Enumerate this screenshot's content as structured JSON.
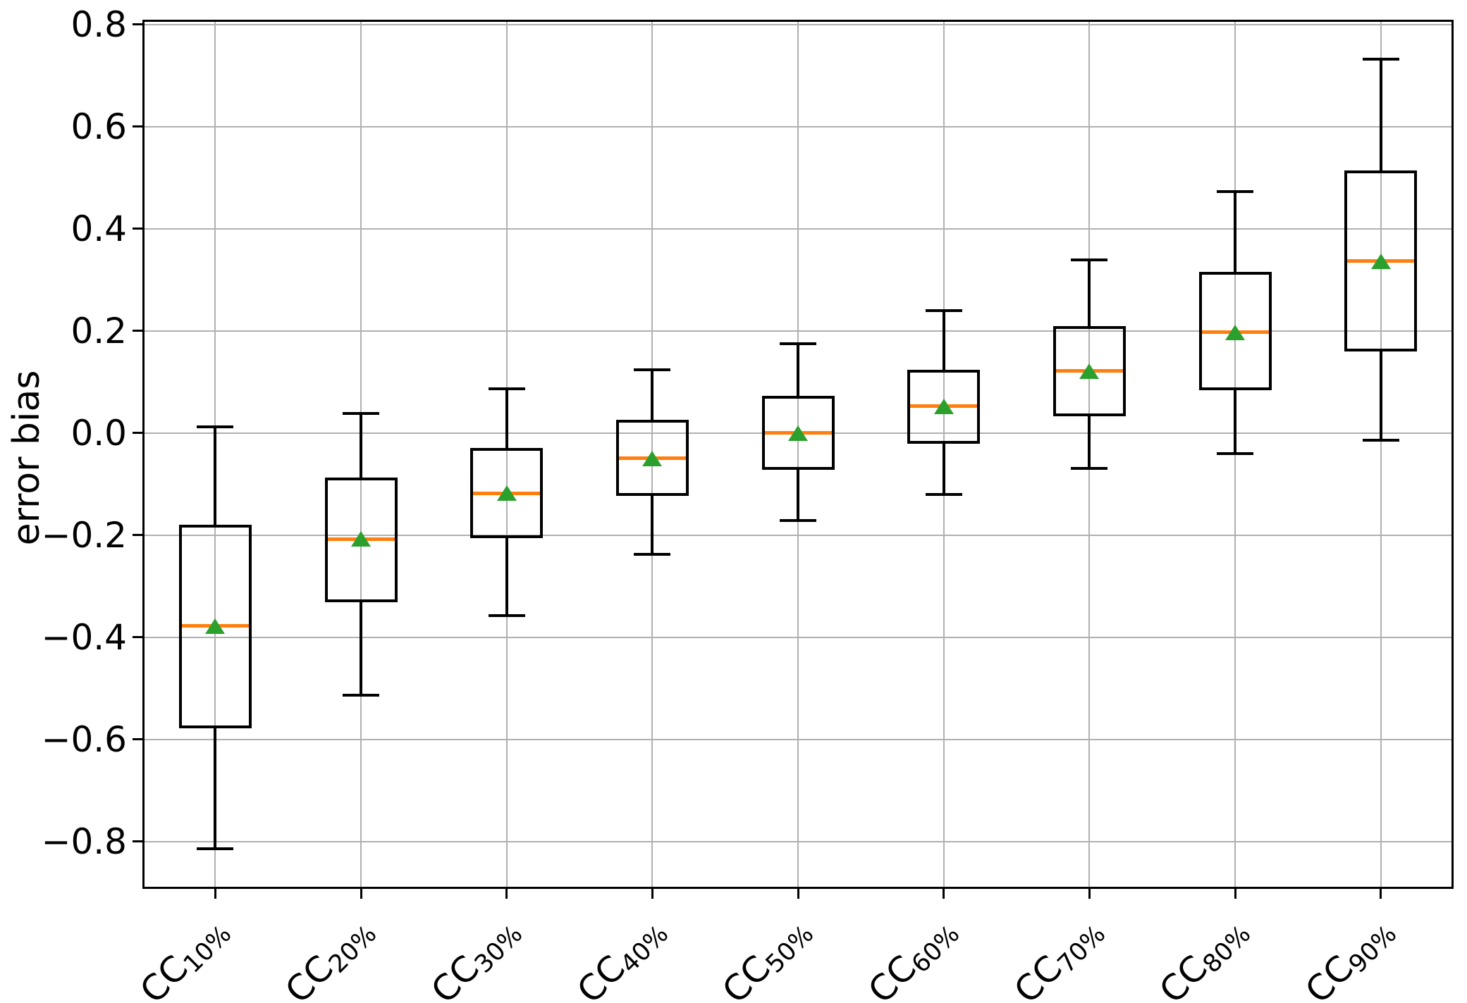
{
  "chart_data": {
    "type": "boxplot",
    "title": "",
    "xlabel": "",
    "ylabel": "error bias",
    "ylim": [
      -0.893,
      0.809
    ],
    "grid": true,
    "legend": false,
    "yticks": [
      {
        "value": 0.8,
        "label": "0.8"
      },
      {
        "value": 0.6,
        "label": "0.6"
      },
      {
        "value": 0.4,
        "label": "0.4"
      },
      {
        "value": 0.2,
        "label": "0.2"
      },
      {
        "value": 0.0,
        "label": "0.0"
      },
      {
        "value": -0.2,
        "label": "−0.2"
      },
      {
        "value": -0.4,
        "label": "−0.4"
      },
      {
        "value": -0.6,
        "label": "−0.6"
      },
      {
        "value": -0.8,
        "label": "−0.8"
      }
    ],
    "categories": [
      {
        "base": "CC",
        "sub": "10%"
      },
      {
        "base": "CC",
        "sub": "20%"
      },
      {
        "base": "CC",
        "sub": "30%"
      },
      {
        "base": "CC",
        "sub": "40%"
      },
      {
        "base": "CC",
        "sub": "50%"
      },
      {
        "base": "CC",
        "sub": "60%"
      },
      {
        "base": "CC",
        "sub": "70%"
      },
      {
        "base": "CC",
        "sub": "80%"
      },
      {
        "base": "CC",
        "sub": "90%"
      }
    ],
    "boxes": [
      {
        "category": "CC 10%",
        "whisker_low": -0.815,
        "q1": -0.578,
        "median": -0.378,
        "q3": -0.18,
        "whisker_high": 0.012,
        "mean": -0.378
      },
      {
        "category": "CC 20%",
        "whisker_low": -0.514,
        "q1": -0.331,
        "median": -0.208,
        "q3": -0.087,
        "whisker_high": 0.038,
        "mean": -0.208
      },
      {
        "category": "CC 30%",
        "whisker_low": -0.358,
        "q1": -0.206,
        "median": -0.118,
        "q3": -0.03,
        "whisker_high": 0.086,
        "mean": -0.118
      },
      {
        "category": "CC 40%",
        "whisker_low": -0.238,
        "q1": -0.124,
        "median": -0.05,
        "q3": 0.026,
        "whisker_high": 0.124,
        "mean": -0.05
      },
      {
        "category": "CC 50%",
        "whisker_low": -0.172,
        "q1": -0.073,
        "median": 0.0,
        "q3": 0.073,
        "whisker_high": 0.175,
        "mean": 0.0
      },
      {
        "category": "CC 60%",
        "whisker_low": -0.12,
        "q1": -0.021,
        "median": 0.052,
        "q3": 0.123,
        "whisker_high": 0.239,
        "mean": 0.052
      },
      {
        "category": "CC 70%",
        "whisker_low": -0.069,
        "q1": 0.033,
        "median": 0.121,
        "q3": 0.209,
        "whisker_high": 0.338,
        "mean": 0.121
      },
      {
        "category": "CC 80%",
        "whisker_low": -0.041,
        "q1": 0.084,
        "median": 0.197,
        "q3": 0.315,
        "whisker_high": 0.473,
        "mean": 0.197
      },
      {
        "category": "CC 90%",
        "whisker_low": -0.014,
        "q1": 0.16,
        "median": 0.336,
        "q3": 0.514,
        "whisker_high": 0.732,
        "mean": 0.336
      }
    ],
    "colors": {
      "box_edge": "#000000",
      "whisker": "#000000",
      "median": "#ff7f0e",
      "mean_marker": "#2ca02c",
      "grid": "#b0b0b0",
      "spine": "#000000",
      "background": "#ffffff"
    }
  }
}
